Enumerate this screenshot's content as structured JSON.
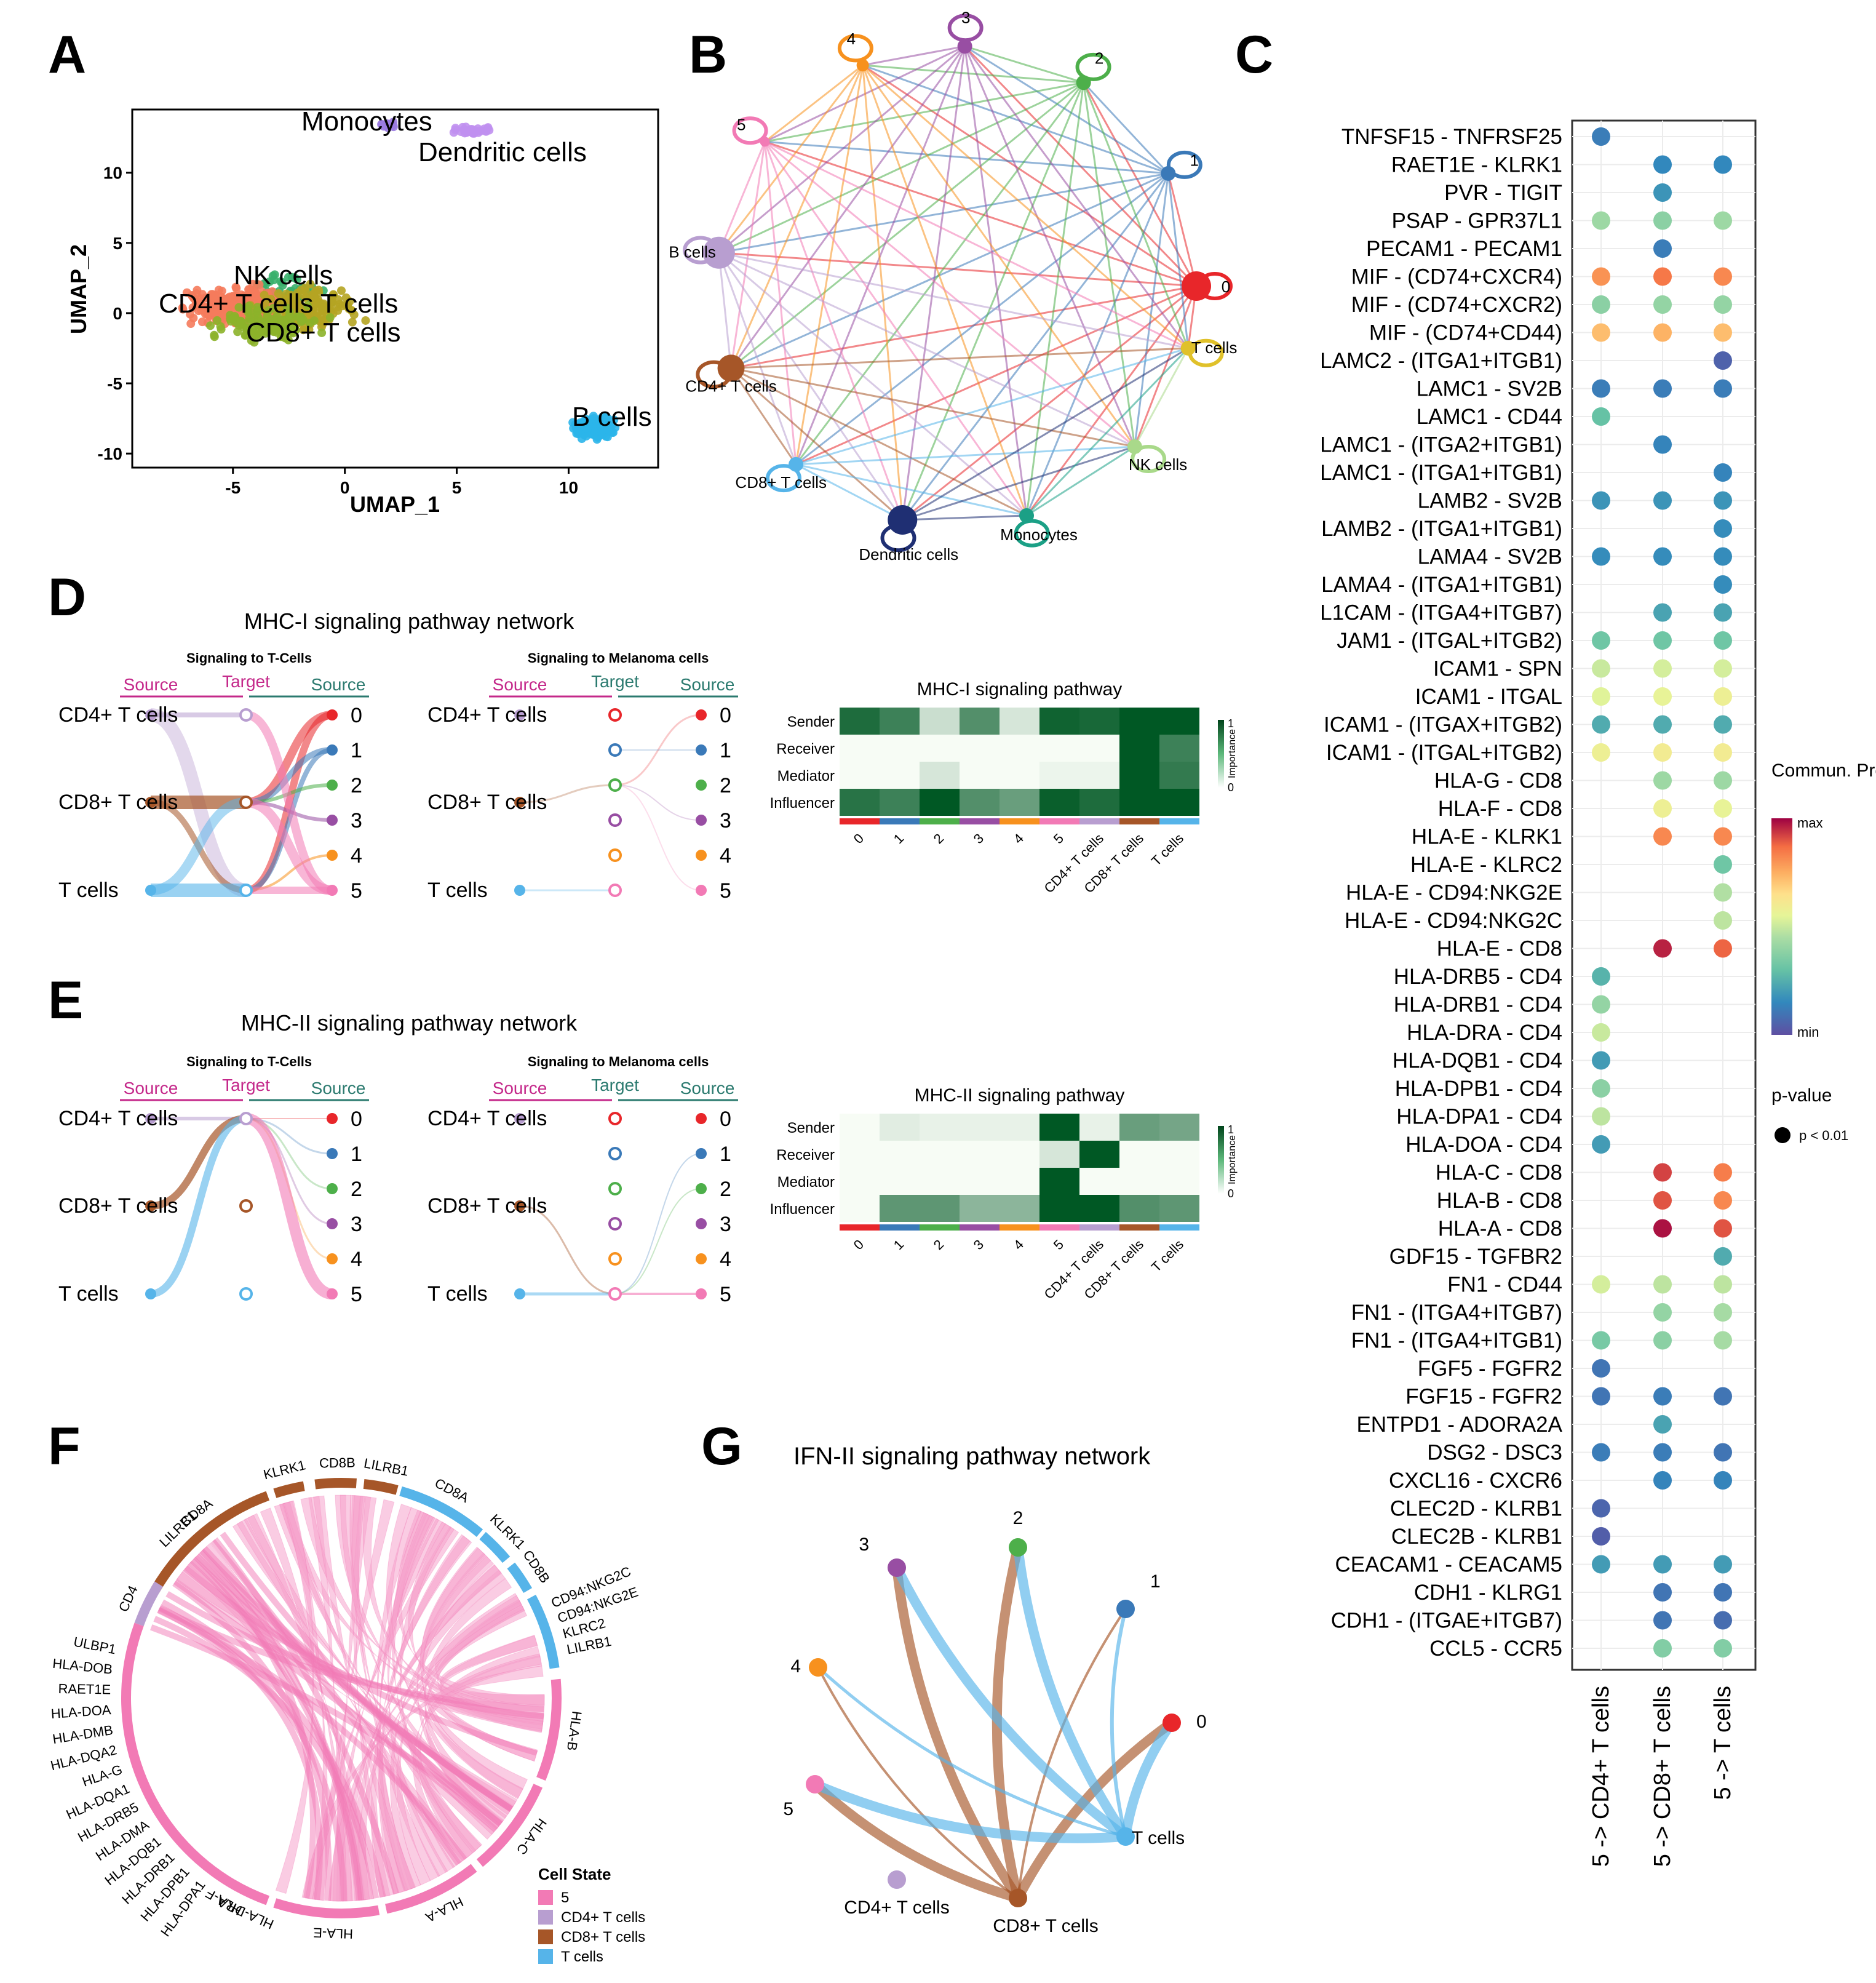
{
  "panel_letters": [
    "A",
    "B",
    "C",
    "D",
    "E",
    "F",
    "G"
  ],
  "chart_data": [
    {
      "id": "A",
      "type": "scatter",
      "title": "",
      "xlabel": "UMAP_1",
      "ylabel": "UMAP_2",
      "xlim": [
        -9.5,
        14
      ],
      "ylim": [
        -11,
        14.5
      ],
      "xticks": [
        -5,
        0,
        5,
        10
      ],
      "yticks": [
        -10,
        -5,
        0,
        5,
        10
      ],
      "clusters": [
        {
          "name": "Monocytes",
          "center": [
            2.0,
            13.4
          ],
          "spread": [
            0.6,
            0.25
          ],
          "color": "#9a7be0",
          "n": 25
        },
        {
          "name": "Dendritic cells",
          "center": [
            5.8,
            13.0
          ],
          "spread": [
            1.2,
            0.35
          ],
          "color": "#c090f0",
          "n": 35
        },
        {
          "name": "NK cells",
          "center": [
            -2.5,
            1.5
          ],
          "spread": [
            2.4,
            1.8
          ],
          "color": "#3ab06b",
          "n": 60
        },
        {
          "name": "CD4+ T cells",
          "center": [
            -4.8,
            0.5
          ],
          "spread": [
            2.8,
            2.0
          ],
          "color": "#f57b5c",
          "n": 260
        },
        {
          "name": "T cells",
          "center": [
            -1.5,
            0.3
          ],
          "spread": [
            3.0,
            2.0
          ],
          "color": "#b5a422",
          "n": 140
        },
        {
          "name": "CD8+ T cells",
          "center": [
            -3.5,
            -0.8
          ],
          "spread": [
            3.0,
            1.8
          ],
          "color": "#8cb22a",
          "n": 120
        },
        {
          "name": "B cells",
          "center": [
            11.2,
            -8.2
          ],
          "spread": [
            1.4,
            1.0
          ],
          "color": "#2bb5ea",
          "n": 130
        }
      ],
      "labels": [
        "Monocytes",
        "Dendritic cells",
        "NK cells",
        "CD4+ T cells T cells",
        "CD8+ T cells",
        "B cells"
      ]
    },
    {
      "id": "B",
      "type": "network",
      "nodes": [
        {
          "name": "0",
          "color": "#e8262a",
          "size": 24
        },
        {
          "name": "1",
          "color": "#3a79b8",
          "size": 12
        },
        {
          "name": "2",
          "color": "#4daf4a",
          "size": 12
        },
        {
          "name": "3",
          "color": "#984ea3",
          "size": 12
        },
        {
          "name": "4",
          "color": "#f7911e",
          "size": 10
        },
        {
          "name": "5",
          "color": "#f27ab5",
          "size": 8
        },
        {
          "name": "B cells",
          "color": "#b89ed0",
          "size": 26
        },
        {
          "name": "CD4+ T cells",
          "color": "#a65628",
          "size": 22
        },
        {
          "name": "CD8+ T cells",
          "color": "#56b4e9",
          "size": 12
        },
        {
          "name": "Dendritic cells",
          "color": "#1f2f73",
          "size": 24
        },
        {
          "name": "Monocytes",
          "color": "#1ba086",
          "size": 12
        },
        {
          "name": "NK cells",
          "color": "#a9d98a",
          "size": 12
        },
        {
          "name": "T cells",
          "color": "#e0c12a",
          "size": 12
        }
      ]
    },
    {
      "id": "C",
      "type": "dotplot",
      "columns": [
        "5 -> CD4+ T cells",
        "5 -> CD8+ T cells",
        "5 -> T cells"
      ],
      "rows": [
        "TNFSF15 - TNFRSF25",
        "RAET1E - KLRK1",
        "PVR - TIGIT",
        "PSAP - GPR37L1",
        "PECAM1 - PECAM1",
        "MIF - (CD74+CXCR4)",
        "MIF - (CD74+CXCR2)",
        "MIF - (CD74+CD44)",
        "LAMC2 - (ITGA1+ITGB1)",
        "LAMC1 - SV2B",
        "LAMC1 - CD44",
        "LAMC1 - (ITGA2+ITGB1)",
        "LAMC1 - (ITGA1+ITGB1)",
        "LAMB2 - SV2B",
        "LAMB2 - (ITGA1+ITGB1)",
        "LAMA4 - SV2B",
        "LAMA4 - (ITGA1+ITGB1)",
        "L1CAM - (ITGA4+ITGB7)",
        "JAM1 - (ITGAL+ITGB2)",
        "ICAM1 - SPN",
        "ICAM1 - ITGAL",
        "ICAM1 - (ITGAX+ITGB2)",
        "ICAM1 - (ITGAL+ITGB2)",
        "HLA-G - CD8",
        "HLA-F - CD8",
        "HLA-E - KLRK1",
        "HLA-E - KLRC2",
        "HLA-E - CD94:NKG2E",
        "HLA-E - CD94:NKG2C",
        "HLA-E - CD8",
        "HLA-DRB5 - CD4",
        "HLA-DRB1 - CD4",
        "HLA-DRA - CD4",
        "HLA-DQB1 - CD4",
        "HLA-DPB1 - CD4",
        "HLA-DPA1 - CD4",
        "HLA-DOA - CD4",
        "HLA-C - CD8",
        "HLA-B - CD8",
        "HLA-A - CD8",
        "GDF15 - TGFBR2",
        "FN1 - CD44",
        "FN1 - (ITGA4+ITGB7)",
        "FN1 - (ITGA4+ITGB1)",
        "FGF5 - FGFR2",
        "FGF15 - FGFR2",
        "ENTPD1 - ADORA2A",
        "DSG2 - DSC3",
        "CXCL16 - CXCR6",
        "CLEC2D - KLRB1",
        "CLEC2B - KLRB1",
        "CEACAM1 - CEACAM5",
        "CDH1 - KLRG1",
        "CDH1 - (ITGAE+ITGB7)",
        "CCL5 - CCR5"
      ],
      "values": [
        [
          0.12,
          null,
          null
        ],
        [
          null,
          0.15,
          0.15
        ],
        [
          null,
          0.18,
          null
        ],
        [
          0.42,
          0.38,
          0.42
        ],
        [
          null,
          0.12,
          null
        ],
        [
          0.8,
          0.85,
          0.82
        ],
        [
          0.38,
          0.4,
          0.4
        ],
        [
          0.72,
          0.74,
          0.72
        ],
        [
          null,
          null,
          0.05
        ],
        [
          0.12,
          0.12,
          0.12
        ],
        [
          0.3,
          null,
          null
        ],
        [
          null,
          0.14,
          null
        ],
        [
          null,
          null,
          0.14
        ],
        [
          0.18,
          0.18,
          0.18
        ],
        [
          null,
          null,
          0.16
        ],
        [
          0.16,
          0.16,
          0.16
        ],
        [
          null,
          null,
          0.16
        ],
        [
          null,
          0.22,
          0.22
        ],
        [
          0.32,
          0.32,
          0.32
        ],
        [
          0.5,
          0.52,
          0.52
        ],
        [
          0.54,
          0.56,
          0.58
        ],
        [
          0.24,
          0.24,
          0.24
        ],
        [
          0.58,
          0.6,
          0.6
        ],
        [
          null,
          0.42,
          0.42
        ],
        [
          null,
          0.58,
          0.56
        ],
        [
          null,
          0.82,
          0.82
        ],
        [
          null,
          null,
          0.32
        ],
        [
          null,
          null,
          0.46
        ],
        [
          null,
          null,
          0.48
        ],
        [
          null,
          0.96,
          0.88
        ],
        [
          0.26,
          null,
          null
        ],
        [
          0.4,
          null,
          null
        ],
        [
          0.5,
          null,
          null
        ],
        [
          0.2,
          null,
          null
        ],
        [
          0.38,
          null,
          null
        ],
        [
          0.48,
          null,
          null
        ],
        [
          0.2,
          null,
          null
        ],
        [
          null,
          0.92,
          0.84
        ],
        [
          null,
          0.9,
          0.82
        ],
        [
          null,
          0.98,
          0.9
        ],
        [
          null,
          null,
          0.24
        ],
        [
          0.52,
          0.48,
          0.48
        ],
        [
          null,
          0.4,
          0.44
        ],
        [
          0.34,
          0.38,
          0.44
        ],
        [
          0.1,
          null,
          null
        ],
        [
          0.1,
          0.12,
          0.1
        ],
        [
          null,
          0.22,
          null
        ],
        [
          0.12,
          0.12,
          0.1
        ],
        [
          null,
          0.14,
          0.14
        ],
        [
          0.06,
          null,
          null
        ],
        [
          0.04,
          null,
          null
        ],
        [
          0.2,
          0.2,
          0.2
        ],
        [
          null,
          0.1,
          0.1
        ],
        [
          null,
          0.1,
          0.08
        ],
        [
          null,
          0.36,
          0.36
        ]
      ],
      "legend": {
        "title": "Commun. Prob.",
        "max_label": "max",
        "min_label": "min",
        "pvalue_title": "p-value",
        "pvalue_label": "p < 0.01"
      }
    },
    {
      "id": "D",
      "type": "hierarchy-network",
      "title": "MHC-I signaling pathway network",
      "subtitles": [
        "Signaling to T-Cells",
        "Signaling to Melanoma cells"
      ],
      "header_labels": [
        "Source",
        "Target",
        "Source"
      ],
      "left_nodes": [
        "CD4+ T cells",
        "CD8+ T cells",
        "T cells"
      ],
      "right_nodes": [
        "0",
        "1",
        "2",
        "3",
        "4",
        "5"
      ]
    },
    {
      "id": "D-heatmap",
      "type": "heatmap",
      "title": "MHC-I signaling pathway",
      "rows": [
        "Sender",
        "Receiver",
        "Mediator",
        "Influencer"
      ],
      "columns": [
        "0",
        "1",
        "2",
        "3",
        "4",
        "5",
        "CD4+ T cells",
        "CD8+ T cells",
        "T cells"
      ],
      "values": [
        [
          0.85,
          0.7,
          0.12,
          0.6,
          0.08,
          0.92,
          0.88,
          1.0,
          1.0
        ],
        [
          0.0,
          0.0,
          0.0,
          0.0,
          0.0,
          0.0,
          0.0,
          1.0,
          0.7
        ],
        [
          0.0,
          0.0,
          0.08,
          0.0,
          0.0,
          0.02,
          0.02,
          1.0,
          0.75
        ],
        [
          0.8,
          0.7,
          1.0,
          0.6,
          0.5,
          0.95,
          0.85,
          1.0,
          1.0
        ]
      ],
      "colorbar": {
        "label": "Importance",
        "max": "1",
        "min": "0"
      }
    },
    {
      "id": "E",
      "type": "hierarchy-network",
      "title": "MHC-II signaling pathway network",
      "subtitles": [
        "Signaling to T-Cells",
        "Signaling to Melanoma cells"
      ],
      "header_labels": [
        "Source",
        "Target",
        "Source"
      ],
      "left_nodes": [
        "CD4+ T cells",
        "CD8+ T cells",
        "T cells"
      ],
      "right_nodes": [
        "0",
        "1",
        "2",
        "3",
        "4",
        "5"
      ]
    },
    {
      "id": "E-heatmap",
      "type": "heatmap",
      "title": "MHC-II signaling pathway",
      "rows": [
        "Sender",
        "Receiver",
        "Mediator",
        "Influencer"
      ],
      "columns": [
        "0",
        "1",
        "2",
        "3",
        "4",
        "5",
        "CD4+ T cells",
        "CD8+ T cells",
        "T cells"
      ],
      "values": [
        [
          0.0,
          0.05,
          0.03,
          0.03,
          0.03,
          1.0,
          0.03,
          0.5,
          0.45
        ],
        [
          0.0,
          0.0,
          0.0,
          0.0,
          0.0,
          0.08,
          1.0,
          0.0,
          0.0
        ],
        [
          0.0,
          0.0,
          0.0,
          0.0,
          0.0,
          1.0,
          0.0,
          0.0,
          0.0
        ],
        [
          0.0,
          0.55,
          0.55,
          0.35,
          0.35,
          1.0,
          1.0,
          0.6,
          0.55
        ]
      ],
      "colorbar": {
        "label": "Importance",
        "max": "1",
        "min": "0"
      }
    },
    {
      "id": "F",
      "type": "chord",
      "labels": [
        "CD8A",
        "KLRK1",
        "CD8B",
        "LILRB1",
        "CD8A",
        "KLRK1",
        "CD8B",
        "CD94:NKG2C",
        "CD94:NKG2E",
        "KLRC2",
        "LILRB1",
        "HLA-B",
        "HLA-C",
        "HLA-A",
        "HLA-E",
        "HLA-DRA",
        "HLA-F",
        "HLA-DPA1",
        "HLA-DPB1",
        "HLA-DRB1",
        "HLA-DQB1",
        "HLA-DMA",
        "HLA-DRB5",
        "HLA-DQA1",
        "HLA-G",
        "HLA-DQA2",
        "HLA-DMB",
        "HLA-DOA",
        "RAET1E",
        "HLA-DOB",
        "ULBP1",
        "CD4",
        "LILRB1"
      ],
      "legend_title": "Cell State",
      "legend": [
        {
          "name": "5",
          "color": "#f27ab5"
        },
        {
          "name": "CD4+ T cells",
          "color": "#b89ed0"
        },
        {
          "name": "CD8+ T cells",
          "color": "#a65628"
        },
        {
          "name": "T cells",
          "color": "#56b4e9"
        }
      ]
    },
    {
      "id": "G",
      "type": "network",
      "title": "IFN-II signaling pathway network",
      "nodes": [
        "0",
        "1",
        "2",
        "3",
        "4",
        "5",
        "CD4+ T cells",
        "CD8+ T cells",
        "T cells"
      ]
    }
  ]
}
